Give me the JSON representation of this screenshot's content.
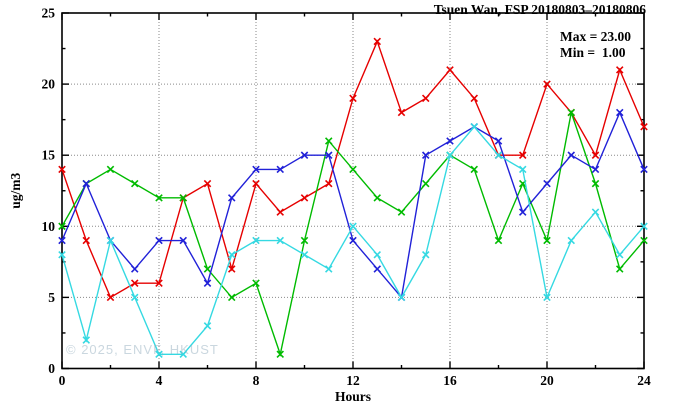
{
  "title": "Tsuen Wan, FSP 20180803–20180806",
  "legend": {
    "max_label": "Max = 23.00",
    "min_label": "Min =  1.00"
  },
  "watermark": "© 2025, ENVF, HKUST",
  "chart_data": {
    "type": "line",
    "title": "Tsuen Wan, FSP 20180803–20180806",
    "xlabel": "Hours",
    "ylabel": "ug/m3",
    "xlim": [
      0,
      24
    ],
    "ylim": [
      0,
      25
    ],
    "xticks": [
      0,
      4,
      8,
      12,
      16,
      20,
      24
    ],
    "yticks": [
      0,
      5,
      10,
      15,
      20,
      25
    ],
    "x_minor_step": 2,
    "y_minor_step": 2.5,
    "grid": "dotted gray at x=4,8,12,16,20 and y=5,10,15,20",
    "legend_position": "top-right annotations",
    "annotations": [
      "Max = 23.00",
      "Min =  1.00"
    ],
    "x": [
      0,
      1,
      2,
      3,
      4,
      5,
      6,
      7,
      8,
      9,
      10,
      11,
      12,
      13,
      14,
      15,
      16,
      17,
      18,
      19,
      20,
      21,
      22,
      23,
      24
    ],
    "series": [
      {
        "name": "red-series",
        "color": "#e60000",
        "values": [
          14,
          9,
          5,
          6,
          6,
          12,
          13,
          7,
          13,
          11,
          12,
          13,
          19,
          23,
          18,
          19,
          21,
          19,
          15,
          15,
          20,
          18,
          15,
          21,
          17
        ]
      },
      {
        "name": "green-series",
        "color": "#00bb00",
        "values": [
          10,
          13,
          14,
          13,
          12,
          12,
          7,
          5,
          6,
          1,
          9,
          16,
          14,
          12,
          11,
          13,
          15,
          14,
          9,
          13,
          9,
          18,
          13,
          7,
          9
        ]
      },
      {
        "name": "blue-series",
        "color": "#2121d8",
        "values": [
          9,
          13,
          9,
          7,
          9,
          9,
          6,
          12,
          14,
          14,
          15,
          15,
          9,
          7,
          5,
          15,
          16,
          17,
          16,
          11,
          13,
          15,
          14,
          18,
          14
        ]
      },
      {
        "name": "cyan-series",
        "color": "#35d9e2",
        "values": [
          8,
          2,
          9,
          5,
          1,
          1,
          3,
          8,
          9,
          9,
          8,
          7,
          10,
          8,
          5,
          8,
          15,
          17,
          15,
          14,
          5,
          9,
          11,
          8,
          10
        ]
      }
    ]
  }
}
